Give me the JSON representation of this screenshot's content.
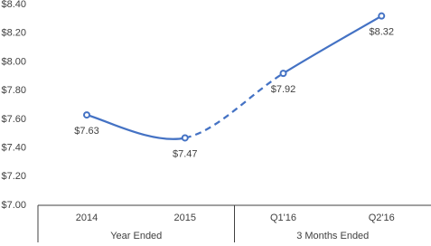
{
  "chart_data": {
    "type": "line",
    "categories": [
      "2014",
      "2015",
      "Q1'16",
      "Q2'16"
    ],
    "groups": [
      {
        "label": "Year Ended",
        "count": 2
      },
      {
        "label": "3 Months Ended",
        "count": 2
      }
    ],
    "series": [
      {
        "color": "#4472c4",
        "values": [
          7.63,
          7.47,
          7.92,
          8.32
        ],
        "value_labels": [
          "$7.63",
          "$7.47",
          "$7.92",
          "$8.32"
        ],
        "segment_styles": [
          "solid",
          "dashed",
          "solid"
        ],
        "smooth": true
      }
    ],
    "ylim": [
      7.0,
      8.4
    ],
    "yticks": [
      {
        "value": 7.0,
        "label": "$7.00"
      },
      {
        "value": 7.2,
        "label": "$7.20"
      },
      {
        "value": 7.4,
        "label": "$7.40"
      },
      {
        "value": 7.6,
        "label": "$7.60"
      },
      {
        "value": 7.8,
        "label": "$7.80"
      },
      {
        "value": 8.0,
        "label": "$8.00"
      },
      {
        "value": 8.2,
        "label": "$8.20"
      },
      {
        "value": 8.4,
        "label": "$8.40"
      }
    ],
    "grid": false
  }
}
